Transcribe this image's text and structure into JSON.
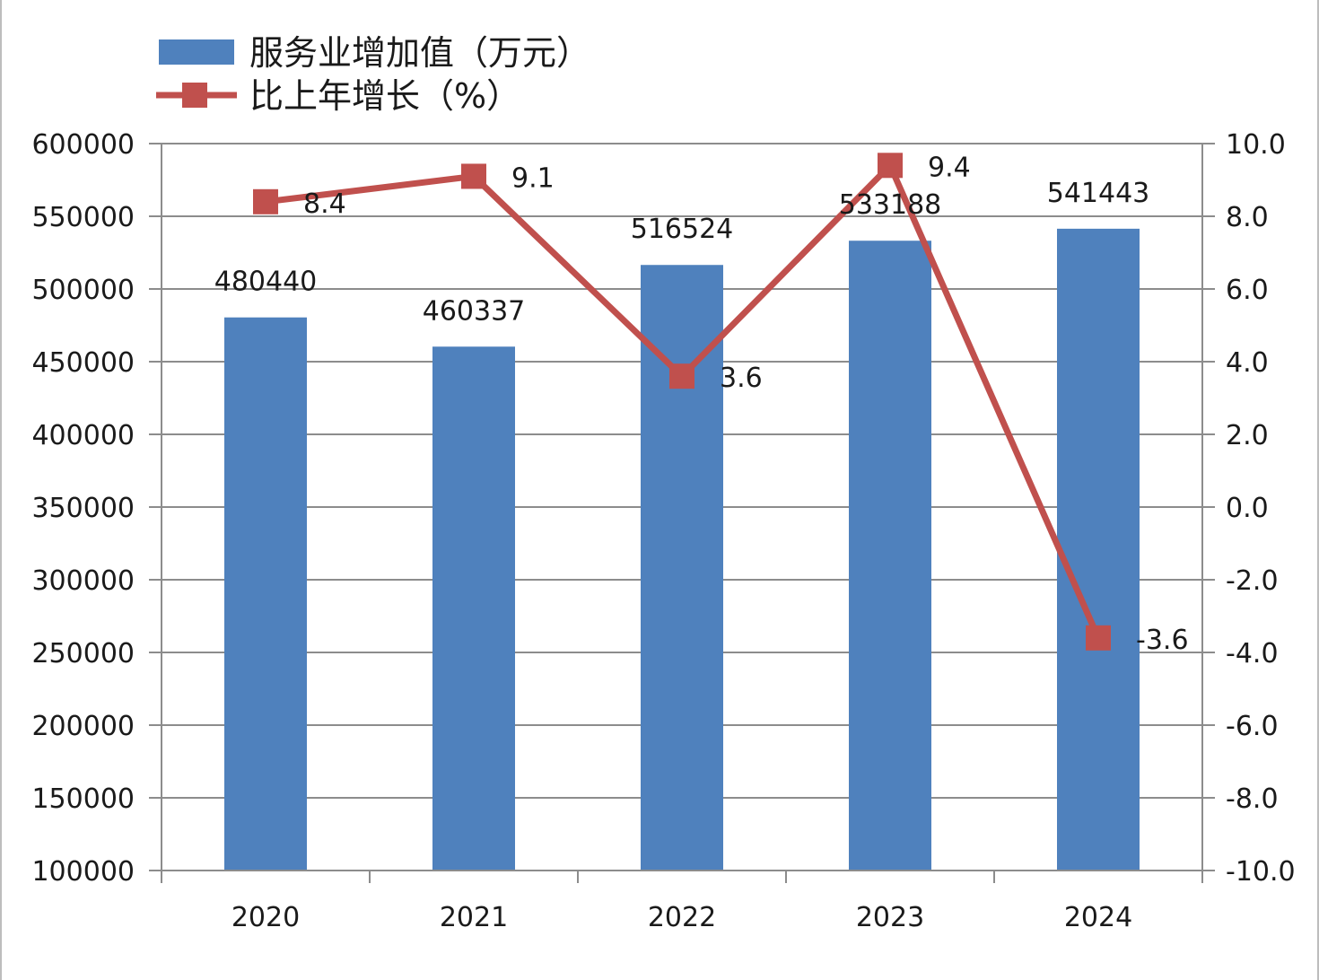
{
  "chart_data": {
    "type": "bar",
    "categories": [
      "2020",
      "2021",
      "2022",
      "2023",
      "2024"
    ],
    "series": [
      {
        "name": "服务业增加值（万元）",
        "type": "bar",
        "axis": "left",
        "values": [
          480440,
          460337,
          516524,
          533188,
          541443
        ],
        "labels": [
          "480440",
          "460337",
          "516524",
          "533188",
          "541443"
        ]
      },
      {
        "name": "比上年增长（%）",
        "type": "line",
        "axis": "right",
        "values": [
          8.4,
          9.1,
          3.6,
          9.4,
          -3.6
        ],
        "labels": [
          "8.4",
          "9.1",
          "3.6",
          "9.4",
          "-3.6"
        ]
      }
    ],
    "y_left": {
      "min": 100000,
      "max": 600000,
      "step": 50000,
      "ticks": [
        "100000",
        "150000",
        "200000",
        "250000",
        "300000",
        "350000",
        "400000",
        "450000",
        "500000",
        "550000",
        "600000"
      ]
    },
    "y_right": {
      "min": -10,
      "max": 10,
      "step": 2,
      "ticks": [
        "-10.0",
        "-8.0",
        "-6.0",
        "-4.0",
        "-2.0",
        "0.0",
        "2.0",
        "4.0",
        "6.0",
        "8.0",
        "10.0"
      ]
    },
    "grid": true,
    "legend_position": "top-left",
    "colors": {
      "bar": "#4f81bd",
      "line": "#c0504d",
      "grid": "#8c8c8c",
      "axis": "#8c8c8c"
    }
  }
}
